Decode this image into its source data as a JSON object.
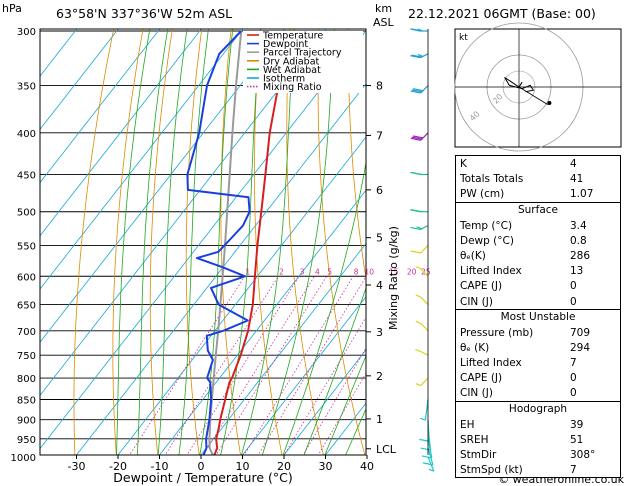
{
  "header": {
    "hpa_label": "hPa",
    "location": "63°58'N  337°36'W  52m  ASL",
    "km_label": "km",
    "asl_label": "ASL",
    "datetime": "22.12.2021  06GMT  (Base: 00)"
  },
  "footer": {
    "copyright": "© weatheronline.co.uk"
  },
  "legend": [
    {
      "label": "Temperature",
      "color": "#d42020"
    },
    {
      "label": "Dewpoint",
      "color": "#1a3fe0"
    },
    {
      "label": "Parcel Trajectory",
      "color": "#9a9a9a"
    },
    {
      "label": "Dry Adiabat",
      "color": "#e08a00"
    },
    {
      "label": "Wet Adiabat",
      "color": "#1fa81f"
    },
    {
      "label": "Isotherm",
      "color": "#17a8d8"
    },
    {
      "label": "Mixing Ratio",
      "color": "#cc2e9c"
    }
  ],
  "chart_data": {
    "type": "line",
    "subtype": "skew-t log-p sounding",
    "xlabel": "Dewpoint / Temperature (°C)",
    "ylabel": "hPa",
    "right_axis_label": "Mixing Ratio (g/kg)",
    "x_ticks": [
      -30,
      -20,
      -10,
      0,
      10,
      20,
      30,
      40
    ],
    "p_ticks": [
      300,
      350,
      400,
      450,
      500,
      550,
      600,
      650,
      700,
      750,
      800,
      850,
      900,
      950,
      1000
    ],
    "km_ticks": [
      {
        "km": "8",
        "p": 350
      },
      {
        "km": "7",
        "p": 403
      },
      {
        "km": "6",
        "p": 470
      },
      {
        "km": "5",
        "p": 538
      },
      {
        "km": "4",
        "p": 615
      },
      {
        "km": "3",
        "p": 702
      },
      {
        "km": "2",
        "p": 795
      },
      {
        "km": "1",
        "p": 898
      },
      {
        "km": "LCL",
        "p": 977
      }
    ],
    "mixing_ratio_labels": [
      "1",
      "2",
      "3",
      "4",
      "5",
      "8",
      "10",
      "15",
      "20",
      "25"
    ],
    "series": [
      {
        "name": "Temperature",
        "color": "#d42020",
        "points": [
          {
            "p": 1000,
            "t": 3.4
          },
          {
            "p": 975,
            "t": 2.6
          },
          {
            "p": 950,
            "t": 0.6
          },
          {
            "p": 925,
            "t": -0.6
          },
          {
            "p": 900,
            "t": -2.0
          },
          {
            "p": 850,
            "t": -4.6
          },
          {
            "p": 810,
            "t": -6.8
          },
          {
            "p": 800,
            "t": -7.0
          },
          {
            "p": 750,
            "t": -9.2
          },
          {
            "p": 700,
            "t": -12.0
          },
          {
            "p": 650,
            "t": -15.8
          },
          {
            "p": 600,
            "t": -20.6
          },
          {
            "p": 550,
            "t": -25.8
          },
          {
            "p": 500,
            "t": -31.2
          },
          {
            "p": 450,
            "t": -37.2
          },
          {
            "p": 400,
            "t": -44.0
          },
          {
            "p": 350,
            "t": -50.8
          },
          {
            "p": 300,
            "t": -58.0
          }
        ]
      },
      {
        "name": "Dewpoint",
        "color": "#1a3fe0",
        "points": [
          {
            "p": 1000,
            "t": 0.8
          },
          {
            "p": 975,
            "t": 0.0
          },
          {
            "p": 950,
            "t": -1.8
          },
          {
            "p": 900,
            "t": -4.6
          },
          {
            "p": 850,
            "t": -8.0
          },
          {
            "p": 810,
            "t": -11.4
          },
          {
            "p": 800,
            "t": -13.0
          },
          {
            "p": 760,
            "t": -15.0
          },
          {
            "p": 740,
            "t": -18.0
          },
          {
            "p": 710,
            "t": -21.0
          },
          {
            "p": 700,
            "t": -18.0
          },
          {
            "p": 680,
            "t": -14.0
          },
          {
            "p": 650,
            "t": -24.0
          },
          {
            "p": 620,
            "t": -29.0
          },
          {
            "p": 600,
            "t": -23.0
          },
          {
            "p": 585,
            "t": -30.0
          },
          {
            "p": 570,
            "t": -38.0
          },
          {
            "p": 560,
            "t": -34.0
          },
          {
            "p": 540,
            "t": -33.5
          },
          {
            "p": 520,
            "t": -33.0
          },
          {
            "p": 500,
            "t": -34.0
          },
          {
            "p": 480,
            "t": -37.0
          },
          {
            "p": 470,
            "t": -53.0
          },
          {
            "p": 450,
            "t": -56.0
          },
          {
            "p": 400,
            "t": -61.0
          },
          {
            "p": 350,
            "t": -68.0
          },
          {
            "p": 320,
            "t": -71.0
          },
          {
            "p": 300,
            "t": -70.0
          }
        ]
      },
      {
        "name": "Parcel Trajectory",
        "color": "#9a9a9a",
        "points": [
          {
            "p": 1000,
            "t": 3.4
          },
          {
            "p": 975,
            "t": 0.8
          },
          {
            "p": 950,
            "t": -1.0
          },
          {
            "p": 900,
            "t": -4.4
          },
          {
            "p": 850,
            "t": -7.8
          },
          {
            "p": 800,
            "t": -11.4
          },
          {
            "p": 750,
            "t": -15.2
          },
          {
            "p": 700,
            "t": -19.2
          },
          {
            "p": 650,
            "t": -23.6
          },
          {
            "p": 600,
            "t": -28.4
          },
          {
            "p": 550,
            "t": -33.6
          },
          {
            "p": 500,
            "t": -39.4
          },
          {
            "p": 450,
            "t": -45.8
          },
          {
            "p": 400,
            "t": -53.0
          },
          {
            "p": 350,
            "t": -61.0
          },
          {
            "p": 300,
            "t": -70.0
          }
        ]
      }
    ],
    "wind_barbs": [
      {
        "p": 1000,
        "dir": 130,
        "kt": 5
      },
      {
        "p": 975,
        "dir": 140,
        "kt": 10
      },
      {
        "p": 950,
        "dir": 150,
        "kt": 10
      },
      {
        "p": 925,
        "dir": 160,
        "kt": 10
      },
      {
        "p": 900,
        "dir": 170,
        "kt": 10
      },
      {
        "p": 850,
        "dir": 200,
        "kt": 5
      },
      {
        "p": 800,
        "dir": 250,
        "kt": 5
      },
      {
        "p": 750,
        "dir": 280,
        "kt": 5
      },
      {
        "p": 700,
        "dir": 290,
        "kt": 5
      },
      {
        "p": 650,
        "dir": 290,
        "kt": 5
      },
      {
        "p": 600,
        "dir": 290,
        "kt": 5
      },
      {
        "p": 550,
        "dir": 250,
        "kt": 10
      },
      {
        "p": 520,
        "dir": 260,
        "kt": 15
      },
      {
        "p": 500,
        "dir": 270,
        "kt": 20
      },
      {
        "p": 450,
        "dir": 270,
        "kt": 20
      },
      {
        "p": 400,
        "dir": 250,
        "kt": 30
      },
      {
        "p": 350,
        "dir": 250,
        "kt": 30
      },
      {
        "p": 320,
        "dir": 260,
        "kt": 25
      },
      {
        "p": 300,
        "dir": 270,
        "kt": 25
      }
    ],
    "hodograph": {
      "unit_label": "kt",
      "ring_labels": [
        "20",
        "40"
      ],
      "trace": [
        {
          "u": 2,
          "v": 3
        },
        {
          "u": 0,
          "v": 0
        },
        {
          "u": -6,
          "v": 4
        },
        {
          "u": -9,
          "v": 6
        },
        {
          "u": -6,
          "v": 1
        },
        {
          "u": 2,
          "v": -1
        },
        {
          "u": 7,
          "v": 1
        },
        {
          "u": 9,
          "v": -2
        },
        {
          "u": 4,
          "v": -3
        }
      ],
      "storm_motion": {
        "u": 18,
        "v": -11
      },
      "end_point": {
        "u": 19,
        "v": -10
      }
    }
  },
  "indices": {
    "top": [
      {
        "k": "K",
        "v": "4"
      },
      {
        "k": "Totals Totals",
        "v": "41"
      },
      {
        "k": "PW (cm)",
        "v": "1.07"
      }
    ],
    "surface": {
      "title": "Surface",
      "rows": [
        {
          "k": "Temp (°C)",
          "v": "3.4"
        },
        {
          "k": "Dewp (°C)",
          "v": "0.8"
        },
        {
          "k": "θₑ(K)",
          "v": "286"
        },
        {
          "k": "Lifted Index",
          "v": "13"
        },
        {
          "k": "CAPE (J)",
          "v": "0"
        },
        {
          "k": "CIN (J)",
          "v": "0"
        }
      ]
    },
    "most_unstable": {
      "title": "Most Unstable",
      "rows": [
        {
          "k": "Pressure (mb)",
          "v": "709"
        },
        {
          "k": "θₑ (K)",
          "v": "294"
        },
        {
          "k": "Lifted Index",
          "v": "7"
        },
        {
          "k": "CAPE (J)",
          "v": "0"
        },
        {
          "k": "CIN (J)",
          "v": "0"
        }
      ]
    },
    "hodograph": {
      "title": "Hodograph",
      "rows": [
        {
          "k": "EH",
          "v": "39"
        },
        {
          "k": "SREH",
          "v": "51"
        },
        {
          "k": "StmDir",
          "v": "308°"
        },
        {
          "k": "StmSpd (kt)",
          "v": "7"
        }
      ]
    }
  }
}
